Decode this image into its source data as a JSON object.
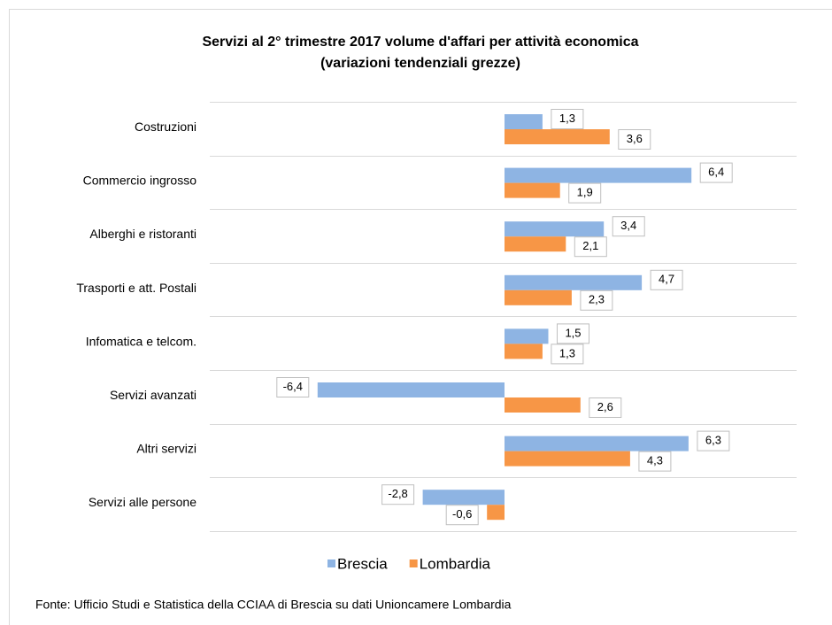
{
  "chart_data": {
    "type": "bar",
    "orientation": "horizontal",
    "title": "Servizi al  2° trimestre  2017 volume d'affari per attività economica",
    "subtitle": "(variazioni tendenziali grezze)",
    "categories": [
      "Costruzioni",
      "Commercio ingrosso",
      "Alberghi e ristoranti",
      "Trasporti e att. Postali",
      "Infomatica e telcom.",
      "Servizi avanzati",
      "Altri servizi",
      "Servizi alle persone"
    ],
    "series": [
      {
        "name": "Brescia",
        "color": "#8eb4e3",
        "values": [
          1.3,
          6.4,
          3.4,
          4.7,
          1.5,
          -6.4,
          6.3,
          -2.8
        ],
        "value_labels": [
          "1,3",
          "6,4",
          "3,4",
          "4,7",
          "1,5",
          "-6,4",
          "6,3",
          "-2,8"
        ]
      },
      {
        "name": "Lombardia",
        "color": "#f79646",
        "values": [
          3.6,
          1.9,
          2.1,
          2.3,
          1.3,
          2.6,
          4.3,
          -0.6
        ],
        "value_labels": [
          "3,6",
          "1,9",
          "2,1",
          "2,3",
          "1,3",
          "2,6",
          "4,3",
          "-0,6"
        ]
      }
    ],
    "grid": true,
    "legend": "bottom",
    "source": "Fonte: Ufficio Studi e Statistica della CCIAA di Brescia  su dati  Unioncamere Lombardia"
  }
}
